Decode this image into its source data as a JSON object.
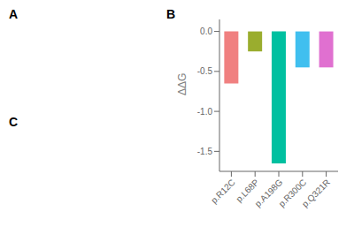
{
  "chart_data": {
    "type": "bar",
    "categories": [
      "p.R12C",
      "p.L68P",
      "p.A198G",
      "p.R300C",
      "p.Q321R"
    ],
    "values": [
      -0.65,
      -0.25,
      -1.65,
      -0.45,
      -0.45
    ],
    "colors": [
      "#F08080",
      "#9AAD2E",
      "#00C0A0",
      "#40BFEF",
      "#E070D0"
    ],
    "ylabel": "ΔΔG",
    "ylim": [
      -1.75,
      0.15
    ],
    "yticks": [
      {
        "value": 0.0,
        "label": "0.0"
      },
      -0.5,
      {
        "value": -1.0,
        "label": "-1.0"
      },
      -1.5
    ],
    "grid": false,
    "annotations": [
      "A",
      "B",
      "C"
    ]
  }
}
